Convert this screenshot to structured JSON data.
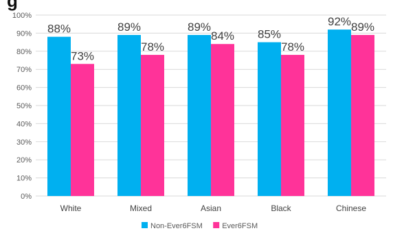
{
  "title": "g",
  "chart_data": {
    "type": "bar",
    "title": "g",
    "xlabel": "",
    "ylabel": "",
    "categories": [
      "White",
      "Mixed",
      "Asian",
      "Black",
      "Chinese"
    ],
    "series": [
      {
        "name": "Non-Ever6FSM",
        "values": [
          88,
          89,
          89,
          85,
          92
        ],
        "labels": [
          "88%",
          "89%",
          "89%",
          "85%",
          "92%"
        ],
        "color": "#00b0f0"
      },
      {
        "name": "Ever6FSM",
        "values": [
          73,
          78,
          84,
          78,
          89
        ],
        "labels": [
          "73%",
          "78%",
          "84%",
          "78%",
          "89%"
        ],
        "color": "#ff3399"
      }
    ],
    "ylim": [
      0,
      100
    ],
    "yticks": [
      "0%",
      "10%",
      "20%",
      "30%",
      "40%",
      "50%",
      "60%",
      "70%",
      "80%",
      "90%",
      "100%"
    ],
    "grid": true,
    "legend_position": "bottom"
  }
}
